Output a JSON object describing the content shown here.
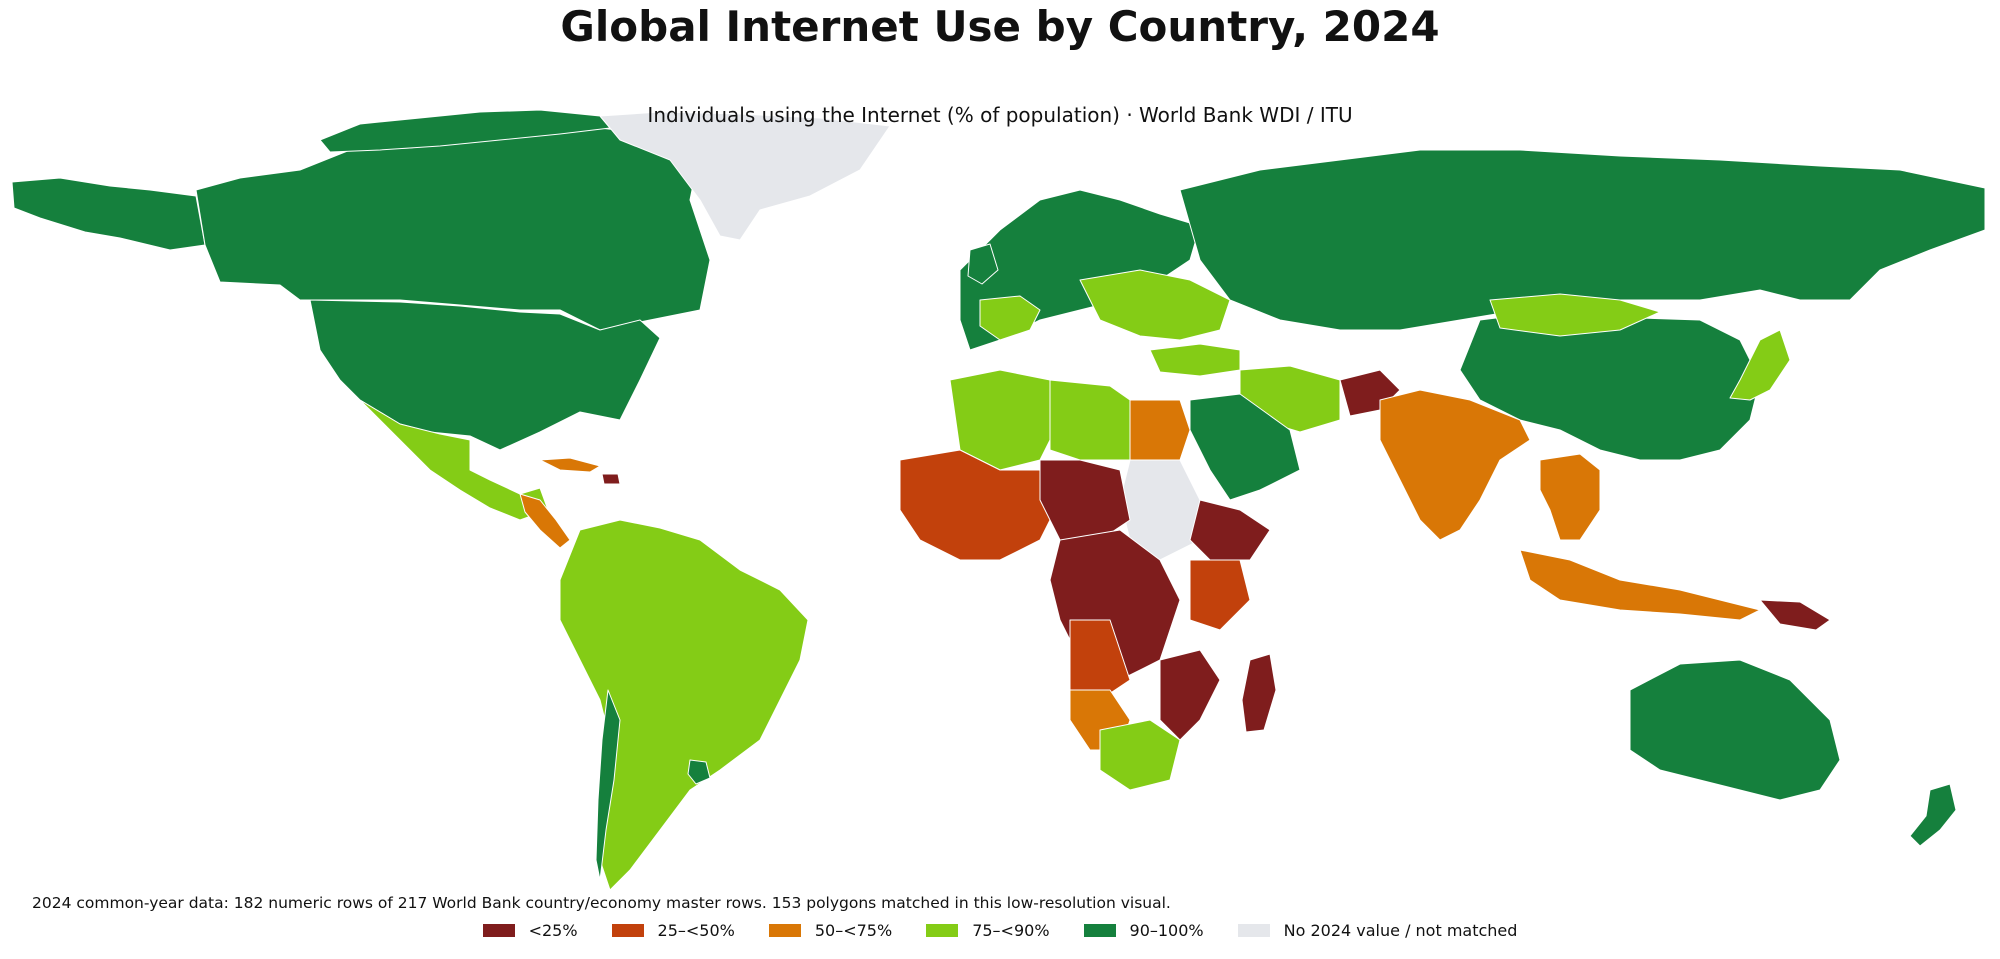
{
  "header": {
    "title": "Global Internet Use by Country, 2024",
    "subtitle": "Individuals using the Internet (% of population) · World Bank WDI / ITU"
  },
  "footnote": "2024 common-year data: 182 numeric rows of 217 World Bank country/economy master rows. 153 polygons matched in this low-resolution visual.",
  "legend": {
    "items": [
      {
        "label": "<25%",
        "color": "#7f1d1d"
      },
      {
        "label": "25–<50%",
        "color": "#c2410c"
      },
      {
        "label": "50–<75%",
        "color": "#d97706"
      },
      {
        "label": "75–<90%",
        "color": "#84cc16"
      },
      {
        "label": "90–100%",
        "color": "#15803d"
      },
      {
        "label": "No 2024 value / not matched",
        "color": "#e5e7eb"
      }
    ]
  },
  "map_data": {
    "type": "choropleth",
    "classes": [
      "<25%",
      "25–<50%",
      "50–<75%",
      "75–<90%",
      "90–100%",
      "No 2024 value / not matched"
    ],
    "regions": [
      {
        "name": "Canada",
        "class": 4
      },
      {
        "name": "United States",
        "class": 4
      },
      {
        "name": "Alaska",
        "class": 4
      },
      {
        "name": "Greenland",
        "class": 5
      },
      {
        "name": "Mexico",
        "class": 3
      },
      {
        "name": "Central America",
        "class": 2
      },
      {
        "name": "Cuba",
        "class": 2
      },
      {
        "name": "Haiti",
        "class": 0
      },
      {
        "name": "South America",
        "class": 3
      },
      {
        "name": "Chile",
        "class": 4
      },
      {
        "name": "Uruguay",
        "class": 4
      },
      {
        "name": "Western Europe",
        "class": 4
      },
      {
        "name": "France",
        "class": 3
      },
      {
        "name": "Eastern Europe",
        "class": 3
      },
      {
        "name": "Russia",
        "class": 4
      },
      {
        "name": "China",
        "class": 4
      },
      {
        "name": "Mongolia",
        "class": 3
      },
      {
        "name": "Japan",
        "class": 3
      },
      {
        "name": "Turkey",
        "class": 3
      },
      {
        "name": "Iran",
        "class": 3
      },
      {
        "name": "Saudi Arabia",
        "class": 4
      },
      {
        "name": "Afghanistan",
        "class": 0
      },
      {
        "name": "India",
        "class": 2
      },
      {
        "name": "Southeast Asia",
        "class": 2
      },
      {
        "name": "Indonesia",
        "class": 2
      },
      {
        "name": "Papua New Guinea",
        "class": 0
      },
      {
        "name": "Australia",
        "class": 4
      },
      {
        "name": "New Zealand",
        "class": 4
      },
      {
        "name": "Algeria",
        "class": 3
      },
      {
        "name": "Libya",
        "class": 3
      },
      {
        "name": "Egypt",
        "class": 2
      },
      {
        "name": "Sudan",
        "class": 5
      },
      {
        "name": "West Africa",
        "class": 1
      },
      {
        "name": "Sahel",
        "class": 0
      },
      {
        "name": "Central Africa",
        "class": 0
      },
      {
        "name": "Ethiopia",
        "class": 0
      },
      {
        "name": "Kenya",
        "class": 1
      },
      {
        "name": "Angola",
        "class": 1
      },
      {
        "name": "Namibia",
        "class": 2
      },
      {
        "name": "South Africa",
        "class": 3
      },
      {
        "name": "Mozambique",
        "class": 0
      },
      {
        "name": "Madagascar",
        "class": 0
      }
    ]
  }
}
